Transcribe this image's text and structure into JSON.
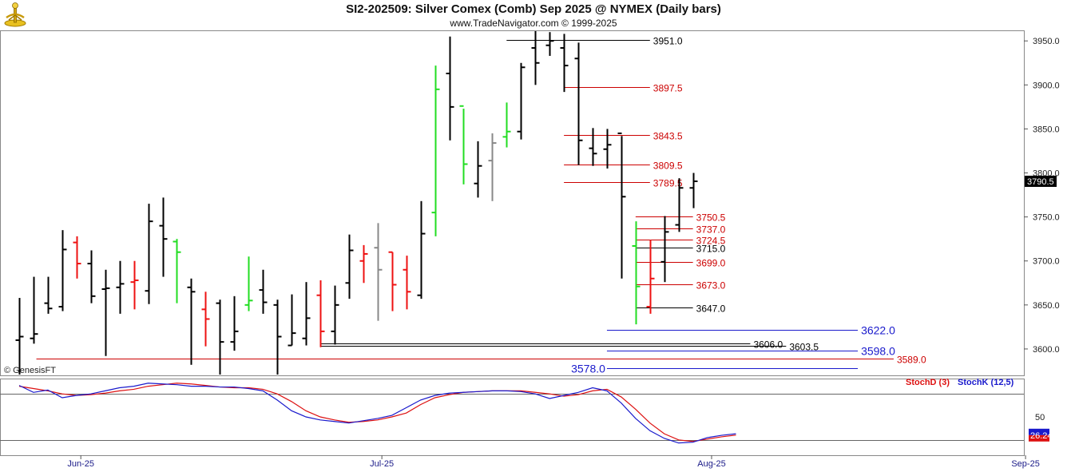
{
  "header": {
    "title": "SI2-202509:  Silver Comex (Comb) Sep 2025 @ NYMEX  (Daily bars)",
    "subtitle": "www.TradeNavigator.com © 1999-2025",
    "logo_icon": "trade-navigator-logo-icon"
  },
  "copyright": "© GenesisFT",
  "chart_data": [
    {
      "type": "ohlc",
      "ylim": [
        3570,
        3962
      ],
      "yticks": [
        "3950.0",
        "3900.0",
        "3850.0",
        "3800.0",
        "3750.0",
        "3700.0",
        "3650.0",
        "3600.0"
      ],
      "ytick_values": [
        3950,
        3900,
        3850,
        3800,
        3750,
        3700,
        3650,
        3600
      ],
      "last_price": "3790.5",
      "x_labels": [
        "Jun-25",
        "Jul-25",
        "Aug-25",
        "Sep-25"
      ],
      "x_label_bars": [
        4.3,
        25.3,
        48.3,
        70.2
      ],
      "num_bars": 72,
      "colors": {
        "normal": "#000000",
        "up_signal": "#22dd22",
        "down_signal": "#ee1111",
        "neutral": "#888888"
      },
      "bars": [
        {
          "d": "2025-05-29",
          "o": 3610,
          "h": 3658,
          "l": 3568,
          "c": 3614,
          "color": "black"
        },
        {
          "d": "2025-05-30",
          "o": 3612,
          "h": 3682,
          "l": 3606,
          "c": 3617,
          "color": "black"
        },
        {
          "d": "2025-06-02",
          "o": 3652,
          "h": 3682,
          "l": 3640,
          "c": 3646,
          "color": "black"
        },
        {
          "d": "2025-06-03",
          "o": 3648,
          "h": 3735,
          "l": 3643,
          "c": 3713,
          "color": "black"
        },
        {
          "d": "2025-06-04",
          "o": 3721,
          "h": 3728,
          "l": 3680,
          "c": 3697,
          "color": "red"
        },
        {
          "d": "2025-06-05",
          "o": 3697,
          "h": 3712,
          "l": 3652,
          "c": 3660,
          "color": "black"
        },
        {
          "d": "2025-06-06",
          "o": 3668,
          "h": 3690,
          "l": 3592,
          "c": 3669,
          "color": "black"
        },
        {
          "d": "2025-06-09",
          "o": 3670,
          "h": 3700,
          "l": 3640,
          "c": 3674,
          "color": "black"
        },
        {
          "d": "2025-06-10",
          "o": 3676,
          "h": 3700,
          "l": 3645,
          "c": 3678,
          "color": "red"
        },
        {
          "d": "2025-06-11",
          "o": 3666,
          "h": 3765,
          "l": 3651,
          "c": 3745,
          "color": "black"
        },
        {
          "d": "2025-06-12",
          "o": 3740,
          "h": 3772,
          "l": 3682,
          "c": 3725,
          "color": "black"
        },
        {
          "d": "2025-06-13",
          "o": 3722,
          "h": 3725,
          "l": 3652,
          "c": 3710,
          "color": "green"
        },
        {
          "d": "2025-06-16",
          "o": 3670,
          "h": 3680,
          "l": 3582,
          "c": 3665,
          "color": "black"
        },
        {
          "d": "2025-06-17",
          "o": 3645,
          "h": 3665,
          "l": 3603,
          "c": 3634,
          "color": "red"
        },
        {
          "d": "2025-06-18",
          "o": 3652,
          "h": 3656,
          "l": 3568,
          "c": 3608,
          "color": "black"
        },
        {
          "d": "2025-06-19",
          "o": 3608,
          "h": 3660,
          "l": 3598,
          "c": 3620,
          "color": "black"
        },
        {
          "d": "2025-06-20",
          "o": 3650,
          "h": 3705,
          "l": 3643,
          "c": 3655,
          "color": "green"
        },
        {
          "d": "2025-06-23",
          "o": 3667,
          "h": 3690,
          "l": 3640,
          "c": 3653,
          "color": "black"
        },
        {
          "d": "2025-06-24",
          "o": 3650,
          "h": 3656,
          "l": 3568,
          "c": 3614,
          "color": "black"
        },
        {
          "d": "2025-06-25",
          "o": 3604,
          "h": 3662,
          "l": 3604,
          "c": 3618,
          "color": "black"
        },
        {
          "d": "2025-06-26",
          "o": 3612,
          "h": 3676,
          "l": 3604,
          "c": 3635,
          "color": "black"
        },
        {
          "d": "2025-06-27",
          "o": 3661,
          "h": 3678,
          "l": 3602,
          "c": 3620,
          "color": "red"
        },
        {
          "d": "2025-06-30",
          "o": 3620,
          "h": 3672,
          "l": 3605,
          "c": 3650,
          "color": "black"
        },
        {
          "d": "2025-07-01",
          "o": 3675,
          "h": 3730,
          "l": 3657,
          "c": 3712,
          "color": "black"
        },
        {
          "d": "2025-07-02",
          "o": 3700,
          "h": 3718,
          "l": 3675,
          "c": 3708,
          "color": "red"
        },
        {
          "d": "2025-07-03",
          "o": 3715,
          "h": 3743,
          "l": 3632,
          "c": 3690,
          "color": "grey"
        },
        {
          "d": "2025-07-07",
          "o": 3710,
          "h": 3710,
          "l": 3643,
          "c": 3673,
          "color": "red"
        },
        {
          "d": "2025-07-08",
          "o": 3690,
          "h": 3706,
          "l": 3645,
          "c": 3665,
          "color": "red"
        },
        {
          "d": "2025-07-09",
          "o": 3661,
          "h": 3768,
          "l": 3657,
          "c": 3731,
          "color": "black"
        },
        {
          "d": "2025-07-10",
          "o": 3755,
          "h": 3922,
          "l": 3728,
          "c": 3895,
          "color": "green"
        },
        {
          "d": "2025-07-11",
          "o": 3913,
          "h": 3955,
          "l": 3837,
          "c": 3875,
          "color": "black"
        },
        {
          "d": "2025-07-14",
          "o": 3876,
          "h": 3873,
          "l": 3787,
          "c": 3810,
          "color": "green"
        },
        {
          "d": "2025-07-15",
          "o": 3788,
          "h": 3836,
          "l": 3772,
          "c": 3808,
          "color": "black"
        },
        {
          "d": "2025-07-16",
          "o": 3814,
          "h": 3845,
          "l": 3768,
          "c": 3834,
          "color": "grey"
        },
        {
          "d": "2025-07-17",
          "o": 3841,
          "h": 3880,
          "l": 3829,
          "c": 3847,
          "color": "green"
        },
        {
          "d": "2025-07-18",
          "o": 3847,
          "h": 3925,
          "l": 3838,
          "c": 3920,
          "color": "black"
        },
        {
          "d": "2025-07-21",
          "o": 3942,
          "h": 3962,
          "l": 3900,
          "c": 3925,
          "color": "black"
        },
        {
          "d": "2025-07-22",
          "o": 3945,
          "h": 3960,
          "l": 3933,
          "c": 3950,
          "color": "black"
        },
        {
          "d": "2025-07-23",
          "o": 3942,
          "h": 3958,
          "l": 3892,
          "c": 3922,
          "color": "black"
        },
        {
          "d": "2025-07-24",
          "o": 3930,
          "h": 3948,
          "l": 3809,
          "c": 3837,
          "color": "black"
        },
        {
          "d": "2025-07-25",
          "o": 3828,
          "h": 3851,
          "l": 3808,
          "c": 3822,
          "color": "black"
        },
        {
          "d": "2025-07-28",
          "o": 3827,
          "h": 3850,
          "l": 3805,
          "c": 3832,
          "color": "black"
        },
        {
          "d": "2025-07-29",
          "o": 3845,
          "h": 3842,
          "l": 3680,
          "c": 3773,
          "color": "black"
        },
        {
          "d": "2025-07-30",
          "o": 3717,
          "h": 3745,
          "l": 3628,
          "c": 3671,
          "color": "green"
        },
        {
          "d": "2025-07-31",
          "o": 3648,
          "h": 3724,
          "l": 3640,
          "c": 3680,
          "color": "red"
        },
        {
          "d": "2025-08-01",
          "o": 3699,
          "h": 3751,
          "l": 3676,
          "c": 3733,
          "color": "black"
        },
        {
          "d": "2025-08-04",
          "o": 3741,
          "h": 3794,
          "l": 3733,
          "c": 3783,
          "color": "black"
        },
        {
          "d": "2025-08-05",
          "o": 3783,
          "h": 3800,
          "l": 3760,
          "c": 3790.5,
          "color": "black"
        }
      ],
      "levels": [
        {
          "value": 3951.0,
          "label": "3951.0",
          "color": "#000000",
          "from_bar": 34,
          "end_bar": 44,
          "size": "small"
        },
        {
          "value": 3897.5,
          "label": "3897.5",
          "color": "#cc0000",
          "from_bar": 38,
          "end_bar": 44,
          "size": "small"
        },
        {
          "value": 3843.5,
          "label": "3843.5",
          "color": "#cc0000",
          "from_bar": 38,
          "end_bar": 44,
          "size": "small"
        },
        {
          "value": 3809.5,
          "label": "3809.5",
          "color": "#cc0000",
          "from_bar": 38,
          "end_bar": 44,
          "size": "small"
        },
        {
          "value": 3789.5,
          "label": "3789.5",
          "color": "#cc0000",
          "from_bar": 38,
          "end_bar": 44,
          "size": "small"
        },
        {
          "value": 3750.5,
          "label": "3750.5",
          "color": "#cc0000",
          "from_bar": 43,
          "end_bar": 47,
          "size": "small"
        },
        {
          "value": 3737.0,
          "label": "3737.0",
          "color": "#cc0000",
          "from_bar": 43,
          "end_bar": 47,
          "size": "small"
        },
        {
          "value": 3724.5,
          "label": "3724.5",
          "color": "#cc0000",
          "from_bar": 43,
          "end_bar": 47,
          "size": "small"
        },
        {
          "value": 3715.0,
          "label": "3715.0",
          "color": "#000000",
          "from_bar": 43,
          "end_bar": 47,
          "size": "small"
        },
        {
          "value": 3699.0,
          "label": "3699.0",
          "color": "#cc0000",
          "from_bar": 43,
          "end_bar": 47,
          "size": "small"
        },
        {
          "value": 3673.0,
          "label": "3673.0",
          "color": "#cc0000",
          "from_bar": 43,
          "end_bar": 47,
          "size": "small"
        },
        {
          "value": 3647.0,
          "label": "3647.0",
          "color": "#000000",
          "from_bar": 43,
          "end_bar": 47,
          "size": "small"
        },
        {
          "value": 3622.0,
          "label": "3622.0",
          "color": "#1a1acc",
          "from_bar": 41,
          "end_bar": 58.5,
          "size": "large"
        },
        {
          "value": 3606.0,
          "label": "3606.0",
          "color": "#000000",
          "from_bar": 21,
          "end_bar": 51,
          "size": "small"
        },
        {
          "value": 3603.5,
          "label": "3603.5",
          "color": "#000000",
          "from_bar": 21,
          "end_bar": 53.5,
          "size": "small"
        },
        {
          "value": 3598.0,
          "label": "3598.0",
          "color": "#1a1acc",
          "from_bar": 41,
          "end_bar": 58.5,
          "size": "large"
        },
        {
          "value": 3589.0,
          "label": "3589.0",
          "color": "#cc0000",
          "from_bar": 1.2,
          "end_bar": 61,
          "size": "small"
        },
        {
          "value": 3578.0,
          "label": "3578.0",
          "color": "#1a1acc",
          "from_bar": 41,
          "end_bar": 58.5,
          "size": "large",
          "label_left": true
        }
      ]
    },
    {
      "type": "line",
      "title": "",
      "ylim": [
        0,
        100
      ],
      "yticks": [
        "50"
      ],
      "ytick_values": [
        50
      ],
      "reference_lines": [
        80,
        20
      ],
      "last_value": "26.24",
      "series": [
        {
          "name": "StochD (3)",
          "color": "#dd1111",
          "values": [
            90,
            87,
            84,
            80,
            78,
            79,
            81,
            84,
            86,
            90,
            92,
            94,
            93,
            91,
            89,
            88,
            88,
            86,
            80,
            70,
            58,
            50,
            46,
            43,
            44,
            46,
            50,
            55,
            66,
            75,
            79,
            82,
            83,
            84,
            84,
            84,
            82,
            80,
            77,
            79,
            84,
            86,
            76,
            60,
            42,
            28,
            20,
            18,
            21,
            24,
            26.24
          ]
        },
        {
          "name": "StochK (12,5)",
          "color": "#1a1acc",
          "values": [
            91,
            82,
            85,
            75,
            78,
            80,
            84,
            88,
            90,
            94,
            93,
            92,
            90,
            90,
            89,
            89,
            87,
            84,
            72,
            58,
            50,
            46,
            44,
            42,
            45,
            48,
            52,
            62,
            72,
            78,
            81,
            82,
            83,
            84,
            84,
            83,
            80,
            74,
            78,
            82,
            88,
            84,
            68,
            48,
            32,
            22,
            16,
            17,
            23,
            26,
            28
          ]
        }
      ]
    }
  ]
}
